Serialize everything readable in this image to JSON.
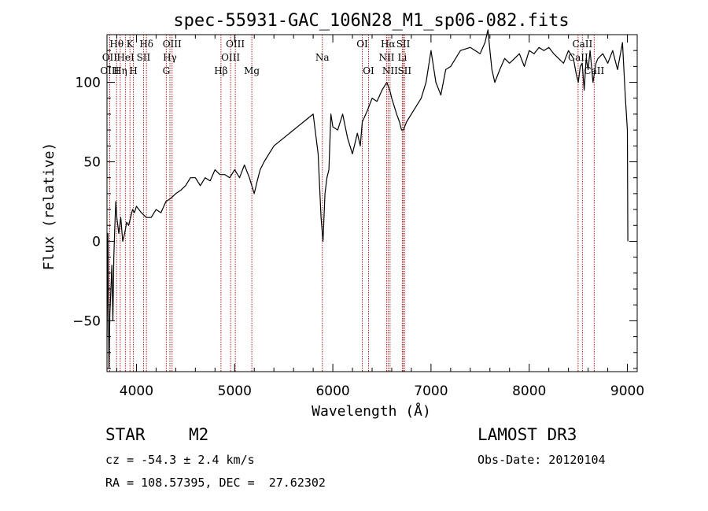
{
  "chart_data": {
    "type": "line",
    "title": "spec-55931-GAC_106N28_M1_sp06-082.fits",
    "xlabel": "Wavelength (Å)",
    "ylabel": "Flux (relative)",
    "xlim": [
      3700,
      9100
    ],
    "ylim": [
      -82,
      130
    ],
    "x_ticks": [
      4000,
      5000,
      6000,
      7000,
      8000,
      9000
    ],
    "y_ticks": [
      -50,
      0,
      50,
      100
    ],
    "series": [
      {
        "name": "spectrum",
        "x": [
          3700,
          3710,
          3720,
          3730,
          3740,
          3750,
          3760,
          3770,
          3780,
          3790,
          3800,
          3820,
          3840,
          3860,
          3880,
          3900,
          3920,
          3940,
          3960,
          3980,
          4000,
          4050,
          4100,
          4150,
          4200,
          4250,
          4300,
          4350,
          4400,
          4450,
          4500,
          4550,
          4600,
          4650,
          4700,
          4750,
          4800,
          4850,
          4900,
          4950,
          5000,
          5050,
          5100,
          5150,
          5200,
          5230,
          5260,
          5300,
          5400,
          5500,
          5600,
          5700,
          5800,
          5850,
          5880,
          5900,
          5920,
          5940,
          5960,
          5980,
          6000,
          6050,
          6100,
          6150,
          6200,
          6250,
          6280,
          6300,
          6350,
          6400,
          6450,
          6500,
          6550,
          6580,
          6600,
          6650,
          6680,
          6700,
          6720,
          6750,
          6800,
          6850,
          6900,
          6950,
          7000,
          7050,
          7100,
          7150,
          7200,
          7250,
          7300,
          7400,
          7500,
          7550,
          7580,
          7600,
          7620,
          7650,
          7700,
          7750,
          7800,
          7850,
          7900,
          7950,
          8000,
          8050,
          8100,
          8150,
          8200,
          8250,
          8300,
          8350,
          8400,
          8450,
          8480,
          8500,
          8520,
          8540,
          8560,
          8580,
          8600,
          8620,
          8650,
          8680,
          8700,
          8750,
          8800,
          8850,
          8900,
          8950,
          8980,
          9000,
          9005
        ],
        "y": [
          -60,
          5,
          -80,
          -45,
          -30,
          -15,
          -50,
          -10,
          10,
          25,
          15,
          5,
          15,
          0,
          5,
          12,
          10,
          15,
          20,
          18,
          22,
          18,
          15,
          15,
          20,
          18,
          25,
          27,
          30,
          32,
          35,
          40,
          40,
          35,
          40,
          38,
          45,
          42,
          42,
          40,
          45,
          40,
          48,
          40,
          30,
          38,
          45,
          50,
          60,
          65,
          70,
          75,
          80,
          55,
          15,
          0,
          30,
          40,
          45,
          80,
          72,
          70,
          80,
          65,
          55,
          68,
          60,
          75,
          82,
          90,
          88,
          95,
          100,
          95,
          90,
          80,
          75,
          70,
          70,
          75,
          80,
          85,
          90,
          100,
          120,
          100,
          92,
          108,
          110,
          115,
          120,
          122,
          118,
          125,
          133,
          120,
          108,
          100,
          108,
          115,
          112,
          115,
          118,
          110,
          120,
          118,
          122,
          120,
          122,
          118,
          115,
          112,
          120,
          115,
          105,
          100,
          110,
          112,
          95,
          115,
          108,
          120,
          100,
          112,
          115,
          118,
          112,
          120,
          108,
          125,
          90,
          70,
          0
        ]
      }
    ],
    "line_marks": [
      {
        "label": "Hθ",
        "x": 3798,
        "row": 1
      },
      {
        "label": "OII",
        "x": 3727,
        "row": 2
      },
      {
        "label": "OIII",
        "x": 3727,
        "row": 3
      },
      {
        "label": "HeI",
        "x": 3889,
        "row": 2
      },
      {
        "label": "Hη",
        "x": 3835,
        "row": 3
      },
      {
        "label": "K",
        "x": 3934,
        "row": 1
      },
      {
        "label": "H",
        "x": 3969,
        "row": 3
      },
      {
        "label": "SII",
        "x": 4072,
        "row": 2
      },
      {
        "label": "Hδ",
        "x": 4102,
        "row": 1
      },
      {
        "label": "OIII",
        "x": 4363,
        "row": 1
      },
      {
        "label": "Hγ",
        "x": 4341,
        "row": 2
      },
      {
        "label": "G",
        "x": 4304,
        "row": 3
      },
      {
        "label": "OIII",
        "x": 5007,
        "row": 1
      },
      {
        "label": "OIII",
        "x": 4959,
        "row": 2
      },
      {
        "label": "Hβ",
        "x": 4861,
        "row": 3
      },
      {
        "label": "Mg",
        "x": 5175,
        "row": 3
      },
      {
        "label": "Na",
        "x": 5893,
        "row": 2
      },
      {
        "label": "OI",
        "x": 6300,
        "row": 1
      },
      {
        "label": "OI",
        "x": 6364,
        "row": 3
      },
      {
        "label": "Hα",
        "x": 6563,
        "row": 1
      },
      {
        "label": "NII",
        "x": 6548,
        "row": 2
      },
      {
        "label": "NII",
        "x": 6583,
        "row": 3
      },
      {
        "label": "SII",
        "x": 6717,
        "row": 1
      },
      {
        "label": "Li",
        "x": 6708,
        "row": 2
      },
      {
        "label": "SII",
        "x": 6731,
        "row": 3
      },
      {
        "label": "CaII",
        "x": 8542,
        "row": 1
      },
      {
        "label": "CaII",
        "x": 8498,
        "row": 2
      },
      {
        "label": "CaII",
        "x": 8662,
        "row": 3
      }
    ]
  },
  "info": {
    "class_label": "STAR",
    "subclass": "M2",
    "survey": "LAMOST DR3",
    "redshift": "cz = -54.3 ± 2.4 km/s",
    "obs_date": "Obs-Date: 20120104",
    "coords": "RA = 108.57395, DEC =  27.62302"
  }
}
